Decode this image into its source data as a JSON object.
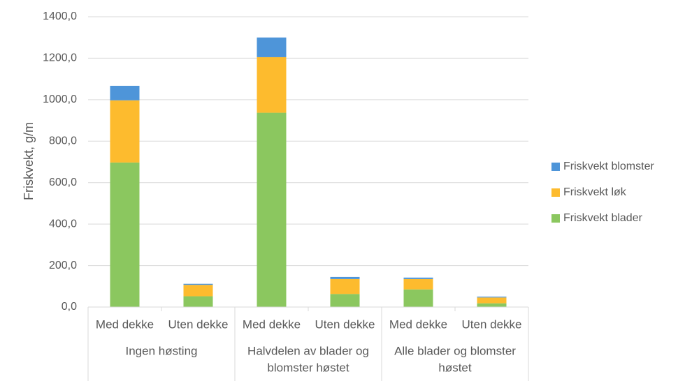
{
  "chart_data": {
    "type": "bar",
    "stacked": true,
    "title": "",
    "xlabel": "",
    "ylabel": "Friskvekt, g/m",
    "ylim": [
      0,
      1400
    ],
    "yticks": [
      "0,0",
      "200,0",
      "400,0",
      "600,0",
      "800,0",
      "1000,0",
      "1200,0",
      "1400,0"
    ],
    "yticks_values": [
      0,
      200,
      400,
      600,
      800,
      1000,
      1200,
      1400
    ],
    "grid": true,
    "legend_position": "right",
    "categories": [
      "Med dekke",
      "Uten dekke",
      "Med dekke",
      "Uten dekke",
      "Med dekke",
      "Uten dekke"
    ],
    "groups": [
      {
        "lines": [
          "Ingen høsting"
        ]
      },
      {
        "lines": [
          "Halvdelen av blader og",
          "blomster høstet"
        ]
      },
      {
        "lines": [
          "Alle blader og blomster",
          "høstet"
        ]
      }
    ],
    "series": [
      {
        "name": "Friskvekt blader",
        "color": "#8BC75F",
        "values": [
          697,
          52,
          937,
          63,
          85,
          18
        ]
      },
      {
        "name": "Friskvekt løk",
        "color": "#FDBB2E",
        "values": [
          300,
          55,
          268,
          72,
          50,
          28
        ]
      },
      {
        "name": "Friskvekt blomster",
        "color": "#4E95D9",
        "values": [
          70,
          5,
          95,
          10,
          7,
          4
        ]
      }
    ]
  }
}
